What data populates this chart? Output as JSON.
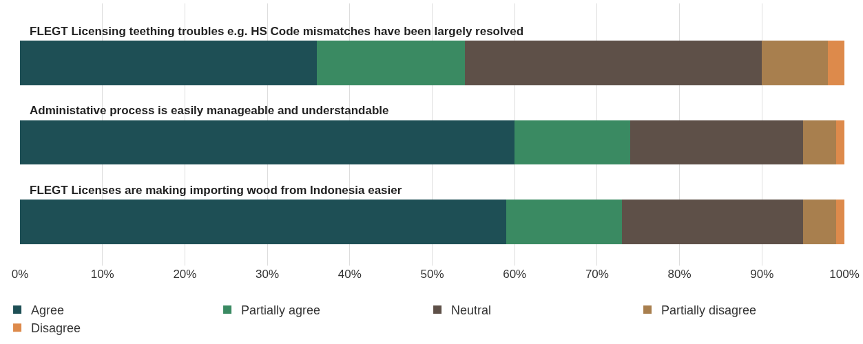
{
  "chart_data": {
    "type": "bar",
    "orientation": "horizontal",
    "stacked": true,
    "categories": [
      "FLEGT Licensing teething troubles e.g. HS Code mismatches have been largely resolved",
      "Administative process is easily manageable and understandable",
      "FLEGT Licenses are making importing wood from Indonesia easier"
    ],
    "series": [
      {
        "name": "Agree",
        "color": "#1e4f55",
        "values": [
          36,
          60,
          59
        ]
      },
      {
        "name": "Partially agree",
        "color": "#3a8a62",
        "values": [
          18,
          14,
          14
        ]
      },
      {
        "name": "Neutral",
        "color": "#5e5048",
        "values": [
          36,
          21,
          22
        ]
      },
      {
        "name": "Partially disagree",
        "color": "#a87f4e",
        "values": [
          8,
          4,
          4
        ]
      },
      {
        "name": "Disagree",
        "color": "#dd8a4b",
        "values": [
          2,
          1,
          1
        ]
      }
    ],
    "xlim": [
      0,
      100
    ],
    "xticks": [
      {
        "value": 0,
        "label": "0%"
      },
      {
        "value": 10,
        "label": "10%"
      },
      {
        "value": 20,
        "label": "20%"
      },
      {
        "value": 30,
        "label": "30%"
      },
      {
        "value": 40,
        "label": "40%"
      },
      {
        "value": 50,
        "label": "50%"
      },
      {
        "value": 60,
        "label": "60%"
      },
      {
        "value": 70,
        "label": "70%"
      },
      {
        "value": 80,
        "label": "80%"
      },
      {
        "value": 90,
        "label": "90%"
      },
      {
        "value": 100,
        "label": "100%"
      }
    ],
    "grid": "x",
    "legend": "bottom"
  }
}
